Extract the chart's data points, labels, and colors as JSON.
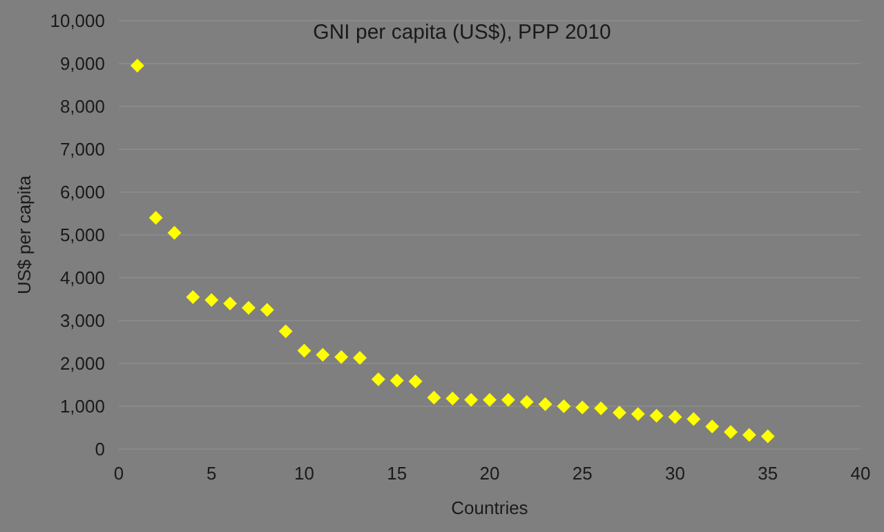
{
  "chart_data": {
    "type": "scatter",
    "title": "GNI per capita (US$), PPP 2010",
    "xlabel": "Countries",
    "ylabel": "US$ per capita",
    "x": [
      1,
      2,
      3,
      4,
      5,
      6,
      7,
      8,
      9,
      10,
      11,
      12,
      13,
      14,
      15,
      16,
      17,
      18,
      19,
      20,
      21,
      22,
      23,
      24,
      25,
      26,
      27,
      28,
      29,
      30,
      31,
      32,
      33,
      34,
      35
    ],
    "series": [
      {
        "color": "#ffff00",
        "values": [
          8950,
          5400,
          5050,
          3550,
          3480,
          3400,
          3300,
          3250,
          2750,
          2300,
          2200,
          2150,
          2130,
          1630,
          1600,
          1580,
          1200,
          1180,
          1150,
          1150,
          1150,
          1100,
          1050,
          1000,
          970,
          950,
          850,
          820,
          780,
          750,
          700,
          530,
          400,
          330,
          300
        ]
      }
    ],
    "marker": "diamond",
    "xlim": [
      0,
      40
    ],
    "xticks": [
      0,
      5,
      10,
      15,
      20,
      25,
      30,
      35,
      40
    ],
    "ylim": [
      0,
      10000
    ],
    "yticks": [
      {
        "value": 0,
        "label": "0"
      },
      {
        "value": 1000,
        "label": "1,000"
      },
      {
        "value": 2000,
        "label": "2,000"
      },
      {
        "value": 3000,
        "label": "3,000"
      },
      {
        "value": 4000,
        "label": "4,000"
      },
      {
        "value": 5000,
        "label": "5,000"
      },
      {
        "value": 6000,
        "label": "6,000"
      },
      {
        "value": 7000,
        "label": "7,000"
      },
      {
        "value": 8000,
        "label": "8,000"
      },
      {
        "value": 9000,
        "label": "9,000"
      },
      {
        "value": 10000,
        "label": "10,000"
      }
    ],
    "grid": "y"
  }
}
